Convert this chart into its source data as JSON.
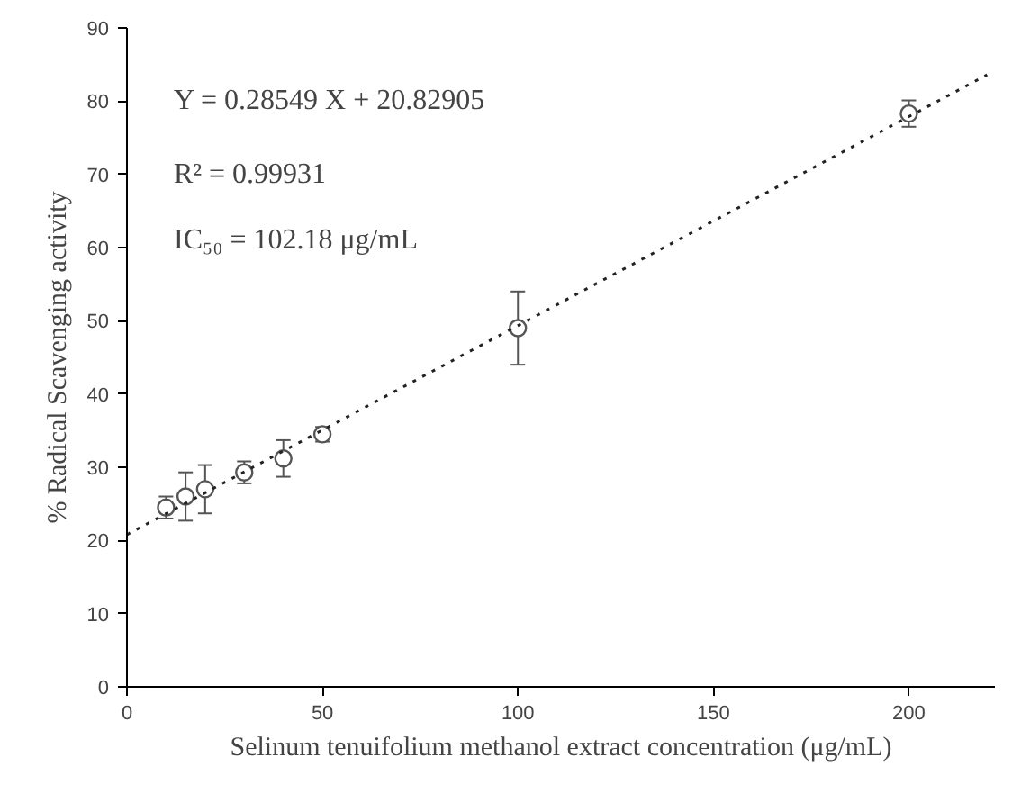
{
  "chart_data": {
    "type": "scatter",
    "xlabel": "Selinum tenuifolium methanol extract concentration (μg/mL)",
    "ylabel": "% Radical Scavenging activity",
    "annotations": [
      "Y = 0.28549 X + 20.82905",
      "R² = 0.99931",
      "IC₅₀ = 102.18 μg/mL"
    ],
    "series": [
      {
        "color": "#555555",
        "x": [
          10,
          15,
          20,
          30,
          40,
          50,
          100,
          200
        ],
        "values": [
          24.5,
          26,
          27,
          29.3,
          31.2,
          34.5,
          49,
          78.3
        ],
        "errors": [
          1.5,
          3.3,
          3.3,
          1.5,
          2.5,
          1,
          5,
          1.8
        ],
        "marker": "circle"
      },
      {
        "type": "line",
        "color": "#222222",
        "x": [
          0,
          220
        ],
        "values": [
          20.8,
          83.6
        ],
        "line_style": "dotted"
      }
    ],
    "xlim": [
      0,
      222
    ],
    "ylim": [
      0,
      90
    ],
    "xticks": [
      0,
      50,
      100,
      150,
      200
    ],
    "yticks": [
      0,
      10,
      20,
      30,
      40,
      50,
      60,
      70,
      80,
      90
    ],
    "grid": false
  }
}
